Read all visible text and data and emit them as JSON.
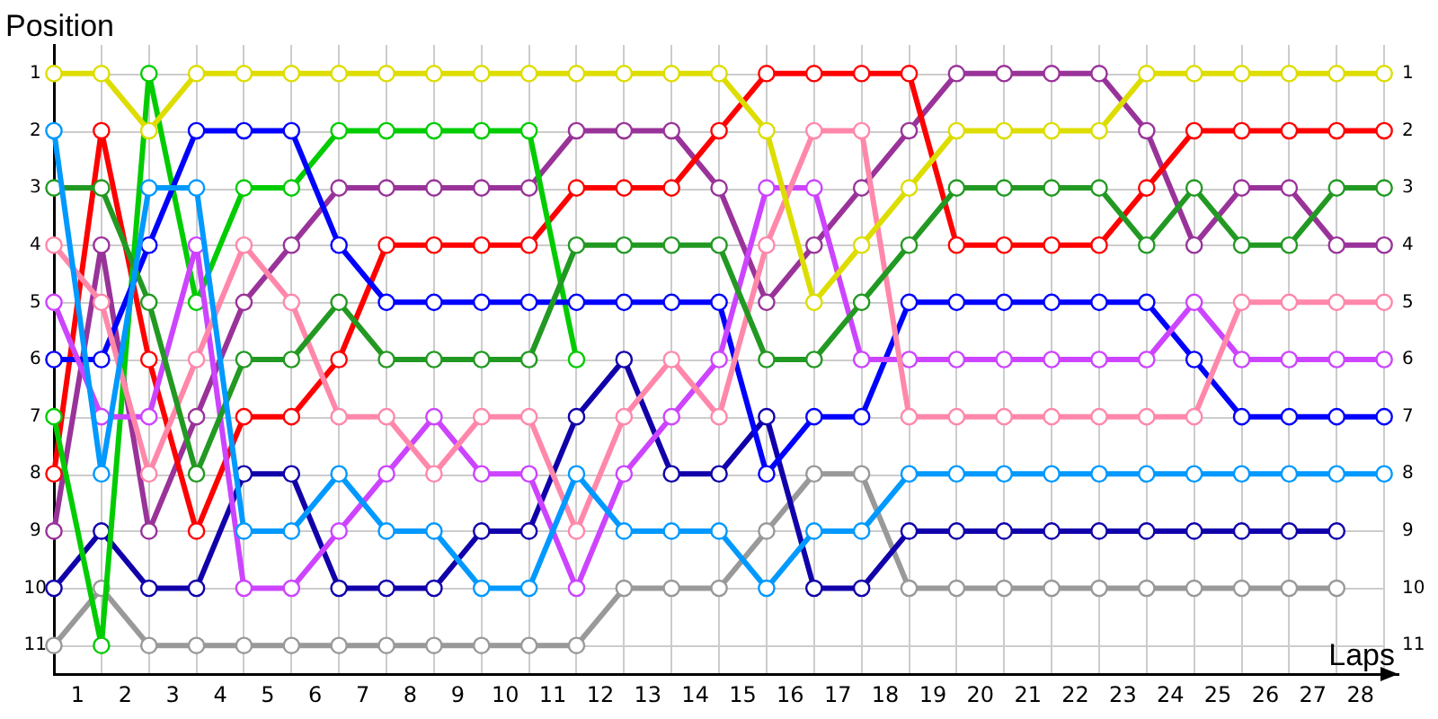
{
  "chart_data": {
    "type": "line",
    "xlabel": "Laps",
    "ylabel": "Position",
    "x": [
      0,
      1,
      2,
      3,
      4,
      5,
      6,
      7,
      8,
      9,
      10,
      11,
      12,
      13,
      14,
      15,
      16,
      17,
      18,
      19,
      20,
      21,
      22,
      23,
      24,
      25,
      26,
      27,
      28
    ],
    "series": [
      {
        "color": "#dddd00",
        "values": [
          1,
          1,
          2,
          1,
          1,
          1,
          1,
          1,
          1,
          1,
          1,
          1,
          1,
          1,
          1,
          2,
          5,
          4,
          3,
          2,
          2,
          2,
          2,
          1,
          1,
          1,
          1,
          1,
          1
        ]
      },
      {
        "color": "#0099ff",
        "values": [
          2,
          8,
          3,
          3,
          9,
          9,
          8,
          9,
          9,
          10,
          10,
          8,
          9,
          9,
          9,
          10,
          9,
          9,
          8,
          8,
          8,
          8,
          8,
          8,
          8,
          8,
          8,
          8,
          8
        ]
      },
      {
        "color": "#229922",
        "values": [
          3,
          3,
          5,
          8,
          6,
          6,
          5,
          6,
          6,
          6,
          6,
          4,
          4,
          4,
          4,
          6,
          6,
          5,
          4,
          3,
          3,
          3,
          3,
          4,
          3,
          4,
          4,
          3,
          3
        ]
      },
      {
        "color": "#ff88aa",
        "values": [
          4,
          5,
          8,
          6,
          4,
          5,
          7,
          7,
          8,
          7,
          7,
          9,
          7,
          6,
          7,
          4,
          2,
          2,
          7,
          7,
          7,
          7,
          7,
          7,
          7,
          5,
          5,
          5,
          5
        ]
      },
      {
        "color": "#cc44ff",
        "values": [
          5,
          7,
          7,
          4,
          10,
          10,
          9,
          8,
          7,
          8,
          8,
          10,
          8,
          7,
          6,
          3,
          3,
          6,
          6,
          6,
          6,
          6,
          6,
          6,
          5,
          6,
          6,
          6,
          6
        ]
      },
      {
        "color": "#0000ff",
        "values": [
          6,
          6,
          4,
          2,
          2,
          2,
          4,
          5,
          5,
          5,
          5,
          5,
          5,
          5,
          5,
          8,
          7,
          7,
          5,
          5,
          5,
          5,
          5,
          5,
          6,
          7,
          7,
          7,
          7
        ]
      },
      {
        "color": "#00cc00",
        "values": [
          7,
          11,
          1,
          5,
          3,
          3,
          2,
          2,
          2,
          2,
          2,
          6,
          null,
          null,
          null,
          null,
          null,
          null,
          null,
          null,
          null,
          null,
          null,
          null,
          null,
          null,
          null,
          null,
          null
        ]
      },
      {
        "color": "#ff0000",
        "values": [
          8,
          2,
          6,
          9,
          7,
          7,
          6,
          4,
          4,
          4,
          4,
          3,
          3,
          3,
          2,
          1,
          1,
          1,
          1,
          4,
          4,
          4,
          4,
          3,
          2,
          2,
          2,
          2,
          2
        ]
      },
      {
        "color": "#993399",
        "values": [
          9,
          4,
          9,
          7,
          5,
          4,
          3,
          3,
          3,
          3,
          3,
          2,
          2,
          2,
          3,
          5,
          4,
          3,
          2,
          1,
          1,
          1,
          1,
          2,
          4,
          3,
          3,
          4,
          4
        ]
      },
      {
        "color": "#1100aa",
        "values": [
          10,
          9,
          10,
          10,
          8,
          8,
          10,
          10,
          10,
          9,
          9,
          7,
          6,
          8,
          8,
          7,
          10,
          10,
          9,
          9,
          9,
          9,
          9,
          9,
          9,
          9,
          9,
          9,
          null
        ]
      },
      {
        "color": "#999999",
        "values": [
          11,
          10,
          11,
          11,
          11,
          11,
          11,
          11,
          11,
          11,
          11,
          11,
          10,
          10,
          10,
          9,
          8,
          8,
          10,
          10,
          10,
          10,
          10,
          10,
          10,
          10,
          10,
          10,
          null
        ]
      }
    ],
    "xlim": [
      0,
      28.3
    ],
    "xticks": [
      {
        "value": 0,
        "label": null
      },
      {
        "value": 0.5,
        "label": "1"
      },
      {
        "value": 1,
        "label": null
      },
      {
        "value": 1.5,
        "label": "2"
      },
      {
        "value": 2,
        "label": null
      },
      {
        "value": 2.5,
        "label": "3"
      },
      {
        "value": 3,
        "label": null
      },
      {
        "value": 3.5,
        "label": "4"
      },
      {
        "value": 4,
        "label": null
      },
      {
        "value": 4.5,
        "label": "5"
      },
      {
        "value": 5,
        "label": null
      },
      {
        "value": 5.5,
        "label": "6"
      },
      {
        "value": 6,
        "label": null
      },
      {
        "value": 6.5,
        "label": "7"
      },
      {
        "value": 7,
        "label": null
      },
      {
        "value": 7.5,
        "label": "8"
      },
      {
        "value": 8,
        "label": null
      },
      {
        "value": 8.5,
        "label": "9"
      },
      {
        "value": 9,
        "label": null
      },
      {
        "value": 9.5,
        "label": "10"
      },
      {
        "value": 10,
        "label": null
      },
      {
        "value": 10.5,
        "label": "11"
      },
      {
        "value": 11,
        "label": null
      },
      {
        "value": 11.5,
        "label": "12"
      },
      {
        "value": 12,
        "label": null
      },
      {
        "value": 12.5,
        "label": "13"
      },
      {
        "value": 13,
        "label": null
      },
      {
        "value": 13.5,
        "label": "14"
      },
      {
        "value": 14,
        "label": null
      },
      {
        "value": 14.5,
        "label": "15"
      },
      {
        "value": 15,
        "label": null
      },
      {
        "value": 15.5,
        "label": "16"
      },
      {
        "value": 16,
        "label": null
      },
      {
        "value": 16.5,
        "label": "17"
      },
      {
        "value": 17,
        "label": null
      },
      {
        "value": 17.5,
        "label": "18"
      },
      {
        "value": 18,
        "label": null
      },
      {
        "value": 18.5,
        "label": "19"
      },
      {
        "value": 19,
        "label": null
      },
      {
        "value": 19.5,
        "label": "20"
      },
      {
        "value": 20,
        "label": null
      },
      {
        "value": 20.5,
        "label": "21"
      },
      {
        "value": 21,
        "label": null
      },
      {
        "value": 21.5,
        "label": "22"
      },
      {
        "value": 22,
        "label": null
      },
      {
        "value": 22.5,
        "label": "23"
      },
      {
        "value": 23,
        "label": null
      },
      {
        "value": 23.5,
        "label": "24"
      },
      {
        "value": 24,
        "label": null
      },
      {
        "value": 24.5,
        "label": "25"
      },
      {
        "value": 25,
        "label": null
      },
      {
        "value": 25.5,
        "label": "26"
      },
      {
        "value": 26,
        "label": null
      },
      {
        "value": 26.5,
        "label": "27"
      },
      {
        "value": 27,
        "label": null
      },
      {
        "value": 27.5,
        "label": "28"
      },
      {
        "value": 28,
        "label": null
      }
    ],
    "ylim": [
      11.5,
      0.5
    ],
    "yticks": [
      1,
      2,
      3,
      4,
      5,
      6,
      7,
      8,
      9,
      10,
      11
    ],
    "y2lim": [
      11.5,
      0.5
    ],
    "y2ticks": [
      1,
      2,
      3,
      4,
      5,
      6,
      7,
      8,
      9,
      10,
      11
    ],
    "grid": true,
    "marker": "circle",
    "line_style": "solid"
  }
}
